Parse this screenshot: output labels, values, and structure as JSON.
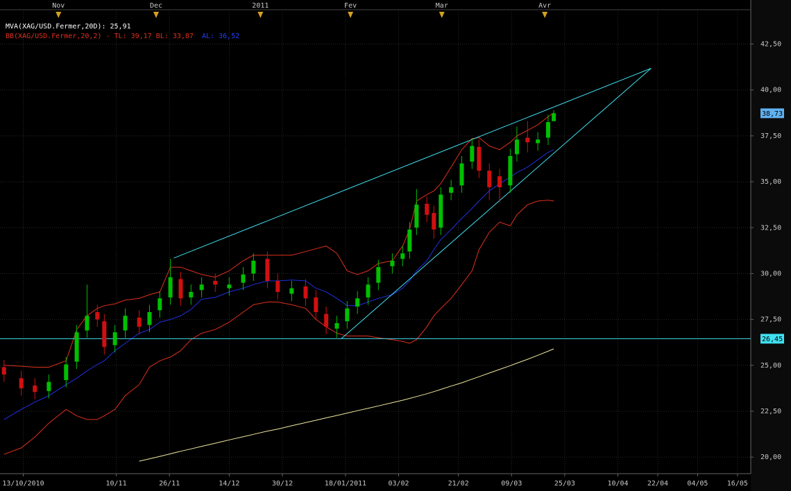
{
  "chart_data": {
    "type": "candlestick",
    "legend": [
      "MVA(XAG/USD.Fermer,20D): 25,91",
      "BB(XAG/USD.Fermer,20,2) - TL: 39,17  BL: 33,87",
      "AL: 36,52"
    ],
    "legend_colors": [
      "#ffffff",
      "#e0301e",
      "#2040ff"
    ],
    "x": [
      -5.8,
      -0.6,
      3.5,
      7.7,
      12.9,
      16.1,
      19.2,
      22.3,
      24.4,
      27.6,
      30.7,
      34.9,
      38.0,
      41.1,
      44.3,
      47.4,
      50.5,
      53.7,
      57.8,
      62.0,
      66.2,
      69.3,
      73.5,
      76.6,
      80.8,
      85.0,
      88.1,
      91.2,
      94.4,
      97.5,
      100.6,
      103.8,
      106.9,
      111.1,
      114.2,
      116.3,
      118.4,
      121.5,
      123.6,
      125.7,
      128.8,
      132.0,
      135.1,
      137.2,
      140.3,
      143.4,
      146.6,
      148.6,
      151.8,
      154.9,
      158.0,
      159.7
    ],
    "open": [
      24.9,
      24.3,
      23.9,
      23.6,
      24.2,
      25.2,
      26.9,
      27.9,
      27.4,
      26.1,
      26.9,
      27.6,
      27.2,
      28.0,
      28.7,
      29.7,
      28.7,
      29.1,
      29.6,
      29.2,
      29.5,
      30.0,
      30.8,
      29.6,
      28.9,
      29.3,
      28.7,
      27.8,
      27.0,
      27.4,
      28.2,
      28.7,
      29.5,
      30.4,
      30.8,
      31.2,
      32.5,
      33.8,
      33.3,
      32.5,
      34.4,
      34.8,
      36.1,
      36.9,
      35.6,
      35.3,
      34.8,
      36.5,
      37.4,
      37.1,
      37.4,
      38.3
    ],
    "high": [
      25.3,
      24.7,
      24.3,
      24.5,
      25.45,
      27.2,
      29.4,
      28.3,
      27.8,
      27.2,
      28.1,
      28.0,
      28.3,
      29.05,
      30.8,
      30.1,
      29.4,
      29.8,
      30.0,
      29.8,
      30.35,
      31.1,
      31.2,
      30.0,
      29.6,
      29.7,
      29.1,
      28.2,
      27.7,
      28.5,
      29.05,
      29.8,
      30.75,
      31.1,
      31.5,
      32.8,
      34.6,
      34.2,
      33.7,
      34.7,
      35.1,
      36.4,
      37.35,
      37.3,
      36.0,
      35.7,
      36.8,
      38.0,
      38.3,
      37.7,
      38.65,
      38.9
    ],
    "low": [
      24.1,
      23.35,
      23.15,
      23.2,
      23.8,
      24.8,
      26.5,
      27.1,
      25.6,
      25.7,
      26.5,
      26.7,
      26.8,
      27.6,
      28.3,
      28.25,
      28.3,
      28.7,
      29.0,
      28.8,
      29.1,
      29.6,
      29.2,
      28.6,
      28.5,
      28.25,
      27.5,
      26.7,
      26.5,
      27.0,
      27.8,
      28.3,
      29.1,
      30.0,
      30.4,
      30.8,
      32.1,
      32.8,
      31.9,
      32.1,
      34.0,
      34.4,
      35.7,
      35.2,
      34.0,
      33.9,
      34.4,
      36.1,
      36.6,
      36.7,
      37.0,
      38.5
    ],
    "close": [
      24.5,
      23.75,
      23.55,
      24.1,
      25.05,
      26.8,
      27.7,
      27.5,
      26.0,
      26.8,
      27.7,
      27.1,
      27.9,
      28.65,
      29.8,
      28.65,
      29.0,
      29.4,
      29.4,
      29.4,
      29.95,
      30.7,
      29.6,
      29.0,
      29.2,
      28.65,
      27.9,
      27.1,
      27.3,
      28.1,
      28.65,
      29.4,
      30.35,
      30.7,
      31.1,
      32.4,
      33.75,
      33.2,
      32.4,
      34.3,
      34.7,
      36.0,
      36.95,
      35.6,
      34.7,
      34.7,
      36.4,
      37.3,
      37.15,
      37.3,
      38.25,
      38.73
    ],
    "up_color": "#00c000",
    "down_color": "#d01010",
    "overlays": [
      {
        "color": "#2030e0",
        "values": [
          22.05,
          22.6,
          23.0,
          23.35,
          23.95,
          24.3,
          24.7,
          25.05,
          25.25,
          25.8,
          26.2,
          26.75,
          26.95,
          27.35,
          27.5,
          27.7,
          28.05,
          28.6,
          28.7,
          29.0,
          29.2,
          29.4,
          29.6,
          29.6,
          29.65,
          29.6,
          29.2,
          29.0,
          28.65,
          28.25,
          28.25,
          28.45,
          28.65,
          28.85,
          29.2,
          29.6,
          30.15,
          30.7,
          31.3,
          31.85,
          32.4,
          33.0,
          33.55,
          33.95,
          34.5,
          34.9,
          35.25,
          35.5,
          35.8,
          36.2,
          36.6,
          36.75
        ]
      },
      {
        "color": "#e0301e",
        "values": [
          25.0,
          24.95,
          24.9,
          24.9,
          25.25,
          26.95,
          27.7,
          28.1,
          28.25,
          28.35,
          28.55,
          28.65,
          28.85,
          29.0,
          30.35,
          30.35,
          30.15,
          29.95,
          29.8,
          30.15,
          30.7,
          31.0,
          31.0,
          31.0,
          31.0,
          31.2,
          31.35,
          31.5,
          31.1,
          30.15,
          29.95,
          30.15,
          30.55,
          30.7,
          31.5,
          32.4,
          33.95,
          34.3,
          34.5,
          34.9,
          35.8,
          36.75,
          37.35,
          37.4,
          36.95,
          36.75,
          37.15,
          37.5,
          37.8,
          38.1,
          38.55,
          38.75
        ]
      },
      {
        "color": "#e0301e",
        "values": [
          20.15,
          20.5,
          21.1,
          21.85,
          22.6,
          22.25,
          22.05,
          22.05,
          22.25,
          22.6,
          23.35,
          23.95,
          24.9,
          25.25,
          25.45,
          25.8,
          26.4,
          26.75,
          26.95,
          27.35,
          27.9,
          28.3,
          28.45,
          28.45,
          28.3,
          28.1,
          27.5,
          27.1,
          26.75,
          26.6,
          26.6,
          26.6,
          26.5,
          26.4,
          26.3,
          26.2,
          26.4,
          27.1,
          27.7,
          28.1,
          28.65,
          29.4,
          30.15,
          31.3,
          32.25,
          32.8,
          32.6,
          33.2,
          33.75,
          33.95,
          34.0,
          33.95
        ]
      },
      {
        "color": "#f0e8a0",
        "values": [
          null,
          null,
          null,
          null,
          null,
          null,
          null,
          null,
          null,
          null,
          null,
          19.78,
          19.91,
          20.04,
          20.18,
          20.32,
          20.45,
          20.59,
          20.76,
          20.94,
          21.11,
          21.24,
          21.42,
          21.53,
          21.71,
          21.88,
          22.01,
          22.14,
          22.27,
          22.4,
          22.53,
          22.66,
          22.79,
          22.97,
          23.1,
          23.2,
          23.3,
          23.45,
          23.57,
          23.69,
          23.87,
          24.05,
          24.25,
          24.38,
          24.58,
          24.78,
          24.98,
          25.12,
          25.33,
          25.55,
          25.77,
          25.9
        ]
      }
    ],
    "trendlines": [
      {
        "color": "#40e0f0",
        "x": [
          45.3,
          189
        ],
        "y": [
          30.84,
          41.18
        ]
      },
      {
        "color": "#40e0f0",
        "x": [
          95.8,
          189
        ],
        "y": [
          26.46,
          41.18
        ]
      }
    ],
    "hline": {
      "value": 26.45,
      "label": "26,45",
      "color": "#40e0f0"
    },
    "last_price": {
      "value": 38.73,
      "label": "38,73",
      "color": "#60b0f0"
    },
    "xlim": [
      -7,
      219
    ],
    "ylim": [
      19.1,
      44.9
    ],
    "xticks": [
      {
        "value": 0,
        "label": "13/10/2010"
      },
      {
        "value": 28,
        "label": "10/11"
      },
      {
        "value": 44,
        "label": "26/11"
      },
      {
        "value": 62,
        "label": "14/12"
      },
      {
        "value": 78,
        "label": "30/12"
      },
      {
        "value": 97,
        "label": "18/01/2011"
      },
      {
        "value": 113,
        "label": "03/02"
      },
      {
        "value": 131,
        "label": "21/02"
      },
      {
        "value": 147,
        "label": "09/03"
      },
      {
        "value": 163,
        "label": "25/03"
      },
      {
        "value": 179,
        "label": "10/04"
      },
      {
        "value": 191,
        "label": "22/04"
      },
      {
        "value": 203,
        "label": "04/05"
      },
      {
        "value": 215,
        "label": "16/05"
      }
    ],
    "top_ticks": [
      {
        "value": 10.6,
        "label": "Nov"
      },
      {
        "value": 40,
        "label": "Dec"
      },
      {
        "value": 71.4,
        "label": "2011"
      },
      {
        "value": 98.5,
        "label": "Fev"
      },
      {
        "value": 126,
        "label": "Mar"
      },
      {
        "value": 157,
        "label": "Avr"
      }
    ],
    "yticks": [
      {
        "value": 20,
        "label": "20,00"
      },
      {
        "value": 22.5,
        "label": "22,50"
      },
      {
        "value": 25,
        "label": "25,00"
      },
      {
        "value": 27.5,
        "label": "27,50"
      },
      {
        "value": 30,
        "label": "30,00"
      },
      {
        "value": 32.5,
        "label": "32,50"
      },
      {
        "value": 35,
        "label": "35,00"
      },
      {
        "value": 37.5,
        "label": "37,50"
      },
      {
        "value": 40,
        "label": "40,00"
      },
      {
        "value": 42.5,
        "label": "42,50"
      }
    ],
    "grid": true
  }
}
